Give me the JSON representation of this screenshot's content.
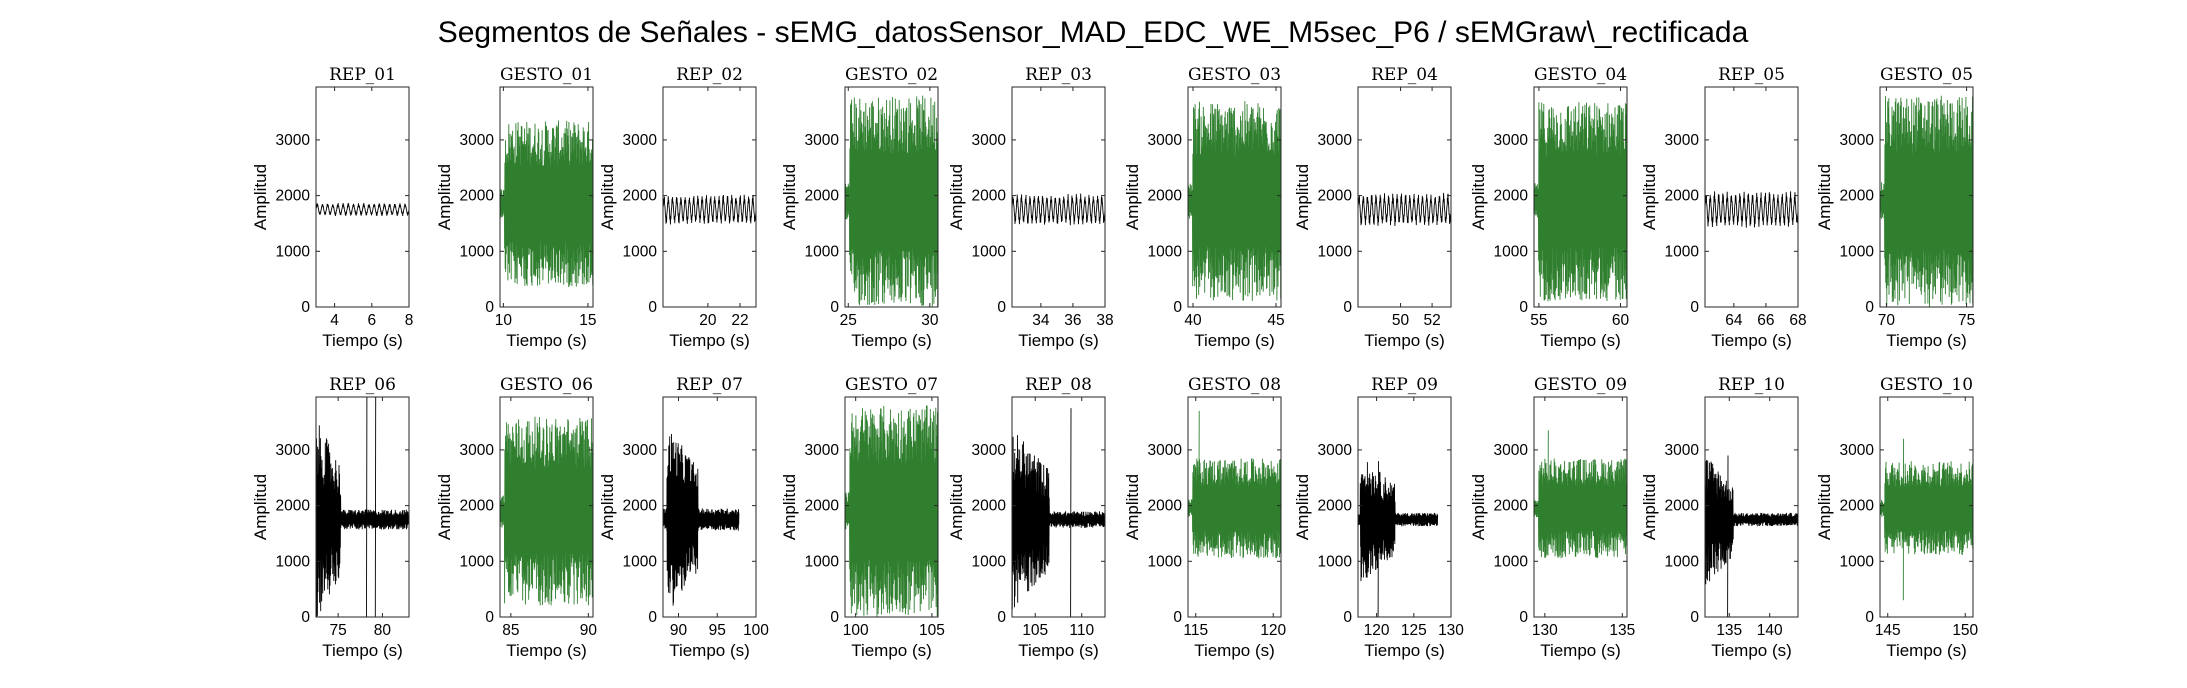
{
  "figure": {
    "title": "Segmentos de Señales - sEMG_datosSensor_MAD_EDC_WE_M5sec_P6 / sEMGraw\\_rectificada"
  },
  "chart_data": {
    "type": "line",
    "grid": false,
    "colors": {
      "rep": "#000000",
      "gesto": "#2f7f2f"
    },
    "panels": [
      {
        "title": "REP_01",
        "kind": "rep",
        "xlabel": "Tiempo (s)",
        "ylabel": "Amplitud",
        "xlim": [
          3,
          8
        ],
        "ylim": [
          0,
          3950
        ],
        "xticks": [
          4,
          6,
          8
        ],
        "yticks": [
          0,
          1000,
          2000,
          3000
        ],
        "signal": {
          "base": 1750,
          "amp": 120,
          "cycles": 18,
          "burst": [],
          "spikes": []
        }
      },
      {
        "title": "GESTO_01",
        "kind": "gesto",
        "xlabel": "Tiempo (s)",
        "ylabel": "Amplitud",
        "xlim": [
          9.8,
          15.3
        ],
        "ylim": [
          0,
          3950
        ],
        "xticks": [
          10,
          15
        ],
        "yticks": [
          0,
          1000,
          2000,
          3000
        ],
        "signal": {
          "base": 1850,
          "amp": 1500,
          "cycles": 0,
          "burst": [],
          "spikes": []
        }
      },
      {
        "title": "REP_02",
        "kind": "rep",
        "xlabel": "Tiempo (s)",
        "ylabel": "Amplitud",
        "xlim": [
          17.2,
          23
        ],
        "ylim": [
          0,
          3950
        ],
        "xticks": [
          20,
          22
        ],
        "yticks": [
          0,
          1000,
          2000,
          3000
        ],
        "signal": {
          "base": 1750,
          "amp": 280,
          "cycles": 22,
          "burst": [],
          "spikes": []
        }
      },
      {
        "title": "GESTO_02",
        "kind": "gesto",
        "xlabel": "Tiempo (s)",
        "ylabel": "Amplitud",
        "xlim": [
          24.8,
          30.5
        ],
        "ylim": [
          0,
          3950
        ],
        "xticks": [
          25,
          30
        ],
        "yticks": [
          0,
          1000,
          2000,
          3000
        ],
        "signal": {
          "base": 1900,
          "amp": 1900,
          "cycles": 0,
          "burst": [],
          "spikes": []
        }
      },
      {
        "title": "REP_03",
        "kind": "rep",
        "xlabel": "Tiempo (s)",
        "ylabel": "Amplitud",
        "xlim": [
          32.2,
          38
        ],
        "ylim": [
          0,
          3950
        ],
        "xticks": [
          34,
          36,
          38
        ],
        "yticks": [
          0,
          1000,
          2000,
          3000
        ],
        "signal": {
          "base": 1750,
          "amp": 290,
          "cycles": 22,
          "burst": [],
          "spikes": []
        }
      },
      {
        "title": "GESTO_03",
        "kind": "gesto",
        "xlabel": "Tiempo (s)",
        "ylabel": "Amplitud",
        "xlim": [
          39.7,
          45.3
        ],
        "ylim": [
          0,
          3950
        ],
        "xticks": [
          40,
          45
        ],
        "yticks": [
          0,
          1000,
          2000,
          3000
        ],
        "signal": {
          "base": 1900,
          "amp": 1800,
          "cycles": 0,
          "burst": [],
          "spikes": []
        }
      },
      {
        "title": "REP_04",
        "kind": "rep",
        "xlabel": "Tiempo (s)",
        "ylabel": "Amplitud",
        "xlim": [
          47.3,
          53.2
        ],
        "ylim": [
          0,
          3950
        ],
        "xticks": [
          50,
          52
        ],
        "yticks": [
          0,
          1000,
          2000,
          3000
        ],
        "signal": {
          "base": 1750,
          "amp": 300,
          "cycles": 22,
          "burst": [],
          "spikes": []
        }
      },
      {
        "title": "GESTO_04",
        "kind": "gesto",
        "xlabel": "Tiempo (s)",
        "ylabel": "Amplitud",
        "xlim": [
          54.7,
          60.4
        ],
        "ylim": [
          0,
          3950
        ],
        "xticks": [
          55,
          60
        ],
        "yticks": [
          0,
          1000,
          2000,
          3000
        ],
        "signal": {
          "base": 1900,
          "amp": 1800,
          "cycles": 0,
          "burst": [],
          "spikes": []
        }
      },
      {
        "title": "REP_05",
        "kind": "rep",
        "xlabel": "Tiempo (s)",
        "ylabel": "Amplitud",
        "xlim": [
          62.2,
          68
        ],
        "ylim": [
          0,
          3950
        ],
        "xticks": [
          64,
          66,
          68
        ],
        "yticks": [
          0,
          1000,
          2000,
          3000
        ],
        "signal": {
          "base": 1750,
          "amp": 330,
          "cycles": 22,
          "burst": [],
          "spikes": []
        }
      },
      {
        "title": "GESTO_05",
        "kind": "gesto",
        "xlabel": "Tiempo (s)",
        "ylabel": "Amplitud",
        "xlim": [
          69.6,
          75.4
        ],
        "ylim": [
          0,
          3950
        ],
        "xticks": [
          70,
          75
        ],
        "yticks": [
          0,
          1000,
          2000,
          3000
        ],
        "signal": {
          "base": 1900,
          "amp": 1900,
          "cycles": 0,
          "burst": [],
          "spikes": []
        }
      },
      {
        "title": "REP_06",
        "kind": "rep",
        "xlabel": "Tiempo (s)",
        "ylabel": "Amplitud",
        "xlim": [
          72.5,
          83
        ],
        "ylim": [
          0,
          3950
        ],
        "xticks": [
          75,
          80
        ],
        "yticks": [
          0,
          1000,
          2000,
          3000
        ],
        "signal": {
          "base": 1750,
          "amp": 180,
          "cycles": 0,
          "burst": [
            72.5,
            75.3,
            1800
          ],
          "spikes": [
            [
              78.2,
              0,
              3950
            ],
            [
              79.2,
              0,
              3950
            ]
          ]
        }
      },
      {
        "title": "GESTO_06",
        "kind": "gesto",
        "xlabel": "Tiempo (s)",
        "ylabel": "Amplitud",
        "xlim": [
          84.3,
          90.3
        ],
        "ylim": [
          0,
          3950
        ],
        "xticks": [
          85,
          90
        ],
        "yticks": [
          0,
          1000,
          2000,
          3000
        ],
        "signal": {
          "base": 1900,
          "amp": 1700,
          "cycles": 0,
          "burst": [],
          "spikes": []
        }
      },
      {
        "title": "REP_07",
        "kind": "rep",
        "xlabel": "Tiempo (s)",
        "ylabel": "Amplitud",
        "xlim": [
          88,
          100
        ],
        "ylim": [
          0,
          3950
        ],
        "xticks": [
          90,
          95,
          100
        ],
        "yticks": [
          0,
          1000,
          2000,
          3000
        ],
        "signal": {
          "base": 1750,
          "amp": 200,
          "cycles": 0,
          "burst": [
            88.5,
            92.5,
            1700
          ],
          "spikes": [],
          "tmax": 97.8
        }
      },
      {
        "title": "GESTO_07",
        "kind": "gesto",
        "xlabel": "Tiempo (s)",
        "ylabel": "Amplitud",
        "xlim": [
          99.3,
          105.4
        ],
        "ylim": [
          0,
          3950
        ],
        "xticks": [
          100,
          105
        ],
        "yticks": [
          0,
          1000,
          2000,
          3000
        ],
        "signal": {
          "base": 1900,
          "amp": 1900,
          "cycles": 0,
          "burst": [],
          "spikes": []
        }
      },
      {
        "title": "REP_08",
        "kind": "rep",
        "xlabel": "Tiempo (s)",
        "ylabel": "Amplitud",
        "xlim": [
          102.5,
          112.5
        ],
        "ylim": [
          0,
          3950
        ],
        "xticks": [
          105,
          110
        ],
        "yticks": [
          0,
          1000,
          2000,
          3000
        ],
        "signal": {
          "base": 1750,
          "amp": 150,
          "cycles": 0,
          "burst": [
            102.5,
            106.5,
            1650
          ],
          "spikes": [
            [
              108.8,
              0,
              3750
            ]
          ]
        }
      },
      {
        "title": "GESTO_08",
        "kind": "gesto",
        "xlabel": "Tiempo (s)",
        "ylabel": "Amplitud",
        "xlim": [
          114.5,
          120.5
        ],
        "ylim": [
          0,
          3950
        ],
        "xticks": [
          115,
          120
        ],
        "yticks": [
          0,
          1000,
          2000,
          3000
        ],
        "signal": {
          "base": 1950,
          "amp": 900,
          "cycles": 0,
          "burst": [],
          "spikes": [
            [
              115.2,
              1400,
              3700
            ]
          ]
        }
      },
      {
        "title": "REP_09",
        "kind": "rep",
        "xlabel": "Tiempo (s)",
        "ylabel": "Amplitud",
        "xlim": [
          117.5,
          130
        ],
        "ylim": [
          0,
          3950
        ],
        "xticks": [
          120,
          125,
          130
        ],
        "yticks": [
          0,
          1000,
          2000,
          3000
        ],
        "signal": {
          "base": 1750,
          "amp": 120,
          "cycles": 0,
          "burst": [
            117.8,
            122.5,
            1150
          ],
          "spikes": [
            [
              120.2,
              0,
              2800
            ]
          ],
          "tmax": 128.2
        }
      },
      {
        "title": "GESTO_09",
        "kind": "gesto",
        "xlabel": "Tiempo (s)",
        "ylabel": "Amplitud",
        "xlim": [
          129.3,
          135.3
        ],
        "ylim": [
          0,
          3950
        ],
        "xticks": [
          130,
          135
        ],
        "yticks": [
          0,
          1000,
          2000,
          3000
        ],
        "signal": {
          "base": 1950,
          "amp": 900,
          "cycles": 0,
          "burst": [],
          "spikes": [
            [
              130.2,
              1400,
              3350
            ]
          ]
        }
      },
      {
        "title": "REP_10",
        "kind": "rep",
        "xlabel": "Tiempo (s)",
        "ylabel": "Amplitud",
        "xlim": [
          132,
          143.5
        ],
        "ylim": [
          0,
          3950
        ],
        "xticks": [
          135,
          140
        ],
        "yticks": [
          0,
          1000,
          2000,
          3000
        ],
        "signal": {
          "base": 1750,
          "amp": 120,
          "cycles": 0,
          "burst": [
            132,
            135.5,
            1200
          ],
          "spikes": [
            [
              134.8,
              0,
              2900
            ]
          ]
        }
      },
      {
        "title": "GESTO_10",
        "kind": "gesto",
        "xlabel": "Tiempo (s)",
        "ylabel": "Amplitud",
        "xlim": [
          144.5,
          150.5
        ],
        "ylim": [
          0,
          3950
        ],
        "xticks": [
          145,
          150
        ],
        "yticks": [
          0,
          1000,
          2000,
          3000
        ],
        "signal": {
          "base": 1950,
          "amp": 850,
          "cycles": 0,
          "burst": [],
          "spikes": [
            [
              146,
              300,
              3200
            ]
          ]
        }
      }
    ]
  }
}
